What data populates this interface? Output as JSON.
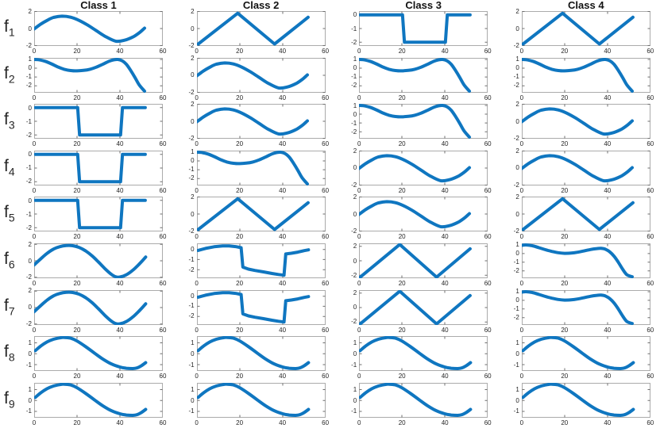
{
  "figure": {
    "column_titles": [
      "Class 1",
      "Class 2",
      "Class 3",
      "Class 4"
    ],
    "row_labels": [
      {
        "base": "f",
        "sub": "1"
      },
      {
        "base": "f",
        "sub": "2"
      },
      {
        "base": "f",
        "sub": "3"
      },
      {
        "base": "f",
        "sub": "4"
      },
      {
        "base": "f",
        "sub": "5"
      },
      {
        "base": "f",
        "sub": "6"
      },
      {
        "base": "f",
        "sub": "7"
      },
      {
        "base": "f",
        "sub": "8"
      },
      {
        "base": "f",
        "sub": "9"
      }
    ]
  },
  "colors": {
    "line": "#0f76c0",
    "axis_box": "#ababab",
    "tick_mark": "#6e6e6e",
    "tick_text": "#262626",
    "title_text": "#121212",
    "background": "#ffffff"
  },
  "chart_data": {
    "type": "line",
    "grid": {
      "rows": 9,
      "cols": 4
    },
    "x_range": [
      0,
      60
    ],
    "x_ticks": [
      0,
      20,
      40,
      60
    ],
    "cells": [
      [
        "sine",
        "triangle",
        "pulse",
        "triangle"
      ],
      [
        "drop",
        "sine",
        "drop",
        "drop"
      ],
      [
        "pulse",
        "sine",
        "drop",
        "sine"
      ],
      [
        "pulse",
        "drop",
        "sine",
        "sine"
      ],
      [
        "pulse",
        "triangle",
        "sine",
        "triangle"
      ],
      [
        "smooth_tri",
        "pulse_sine",
        "big_triangle",
        "flat_drop"
      ],
      [
        "smooth_tri",
        "pulse_sine",
        "big_triangle",
        "flat_drop"
      ],
      [
        "late_sine",
        "late_sine",
        "late_sine",
        "late_sine"
      ],
      [
        "late_sine",
        "late_sine",
        "late_sine",
        "late_sine"
      ]
    ],
    "waveforms": {
      "sine": {
        "smooth": true,
        "y_ticks": [
          2,
          0,
          -2
        ],
        "y_range": [
          -2.05,
          2.05
        ],
        "x": [
          0,
          3,
          6,
          9,
          13,
          17,
          21,
          25,
          29,
          33,
          38,
          42,
          46,
          49,
          51.5
        ],
        "y": [
          -0.05,
          0.5,
          0.95,
          1.3,
          1.45,
          1.33,
          0.95,
          0.4,
          -0.25,
          -0.9,
          -1.48,
          -1.38,
          -1.0,
          -0.5,
          0.05
        ]
      },
      "drop": {
        "smooth": true,
        "y_ticks": [
          1,
          0,
          -1,
          -2
        ],
        "y_range": [
          -2.8,
          1.18
        ],
        "x": [
          0,
          2,
          5,
          8,
          11,
          14,
          17,
          20,
          23,
          26,
          29,
          32,
          35,
          37,
          39,
          41,
          43,
          45,
          47,
          49,
          51.5
        ],
        "y": [
          1.0,
          0.97,
          0.8,
          0.5,
          0.15,
          -0.12,
          -0.27,
          -0.3,
          -0.25,
          -0.12,
          0.12,
          0.45,
          0.8,
          0.95,
          1.0,
          0.85,
          0.45,
          -0.25,
          -1.05,
          -1.9,
          -2.62
        ]
      },
      "pulse": {
        "smooth": false,
        "y_ticks": [
          0,
          -1,
          -2
        ],
        "y_range": [
          -2.28,
          0.28
        ],
        "x": [
          0.5,
          20.3,
          21.2,
          40.3,
          41.2,
          51.8
        ],
        "y": [
          0,
          0,
          -2,
          -2,
          0,
          0
        ]
      },
      "triangle": {
        "smooth": false,
        "y_ticks": [
          2,
          0,
          -2
        ],
        "y_range": [
          -2.05,
          2.05
        ],
        "x": [
          0.6,
          19,
          36.2,
          51.8
        ],
        "y": [
          -1.82,
          1.8,
          -1.82,
          1.32
        ]
      },
      "smooth_tri": {
        "smooth": true,
        "y_ticks": [
          2,
          0,
          -2
        ],
        "y_range": [
          -2.12,
          2.12
        ],
        "x": [
          0,
          3,
          6,
          9,
          12,
          15,
          18,
          21,
          24,
          27,
          30,
          33,
          36,
          38,
          40,
          43,
          46,
          49,
          52
        ],
        "y": [
          -0.5,
          0.22,
          0.9,
          1.42,
          1.72,
          1.85,
          1.83,
          1.62,
          1.2,
          0.6,
          -0.15,
          -0.95,
          -1.65,
          -1.95,
          -1.98,
          -1.7,
          -1.15,
          -0.4,
          0.45
        ]
      },
      "pulse_sine": {
        "smooth": false,
        "y_ticks": [
          0,
          -1,
          -2
        ],
        "y_range": [
          -2.85,
          0.6
        ],
        "x": [
          0.5,
          4,
          8,
          12,
          15,
          18,
          20.6,
          21.4,
          24,
          27,
          31,
          35,
          38,
          40.6,
          41.4,
          44,
          47,
          50,
          52
        ],
        "y": [
          -0.1,
          0.1,
          0.26,
          0.34,
          0.35,
          0.28,
          0.17,
          -1.75,
          -1.95,
          -2.08,
          -2.22,
          -2.38,
          -2.48,
          -2.55,
          -0.45,
          -0.38,
          -0.27,
          -0.12,
          -0.04
        ]
      },
      "big_triangle": {
        "smooth": false,
        "y_ticks": [
          2,
          0,
          -2
        ],
        "y_range": [
          -2.4,
          2.4
        ],
        "x": [
          0.6,
          19,
          36.2,
          51.8
        ],
        "y": [
          -2.25,
          2.25,
          -2.25,
          1.65
        ]
      },
      "flat_drop": {
        "smooth": true,
        "y_ticks": [
          1,
          0,
          -1,
          -2
        ],
        "y_range": [
          -2.85,
          1.18
        ],
        "x": [
          0,
          2,
          5,
          8,
          11,
          14,
          17,
          20,
          23,
          26,
          29,
          32,
          35,
          37,
          39,
          41,
          43,
          45,
          47,
          49,
          51.5
        ],
        "y": [
          0.95,
          1.0,
          0.9,
          0.68,
          0.45,
          0.25,
          0.1,
          0.03,
          0.05,
          0.15,
          0.3,
          0.47,
          0.58,
          0.6,
          0.5,
          0.2,
          -0.3,
          -1.0,
          -1.8,
          -2.45,
          -2.68
        ]
      },
      "late_sine": {
        "smooth": true,
        "y_ticks": [
          1,
          0,
          -1
        ],
        "y_range": [
          -1.58,
          1.62
        ],
        "x": [
          0.5,
          3,
          6,
          9,
          12,
          14,
          17,
          20,
          24,
          28,
          32,
          36,
          40,
          43,
          46,
          48,
          50,
          52
        ],
        "y": [
          0.28,
          0.7,
          1.08,
          1.33,
          1.46,
          1.5,
          1.43,
          1.17,
          0.65,
          0.08,
          -0.48,
          -0.93,
          -1.22,
          -1.33,
          -1.36,
          -1.3,
          -1.1,
          -0.82
        ]
      }
    }
  }
}
